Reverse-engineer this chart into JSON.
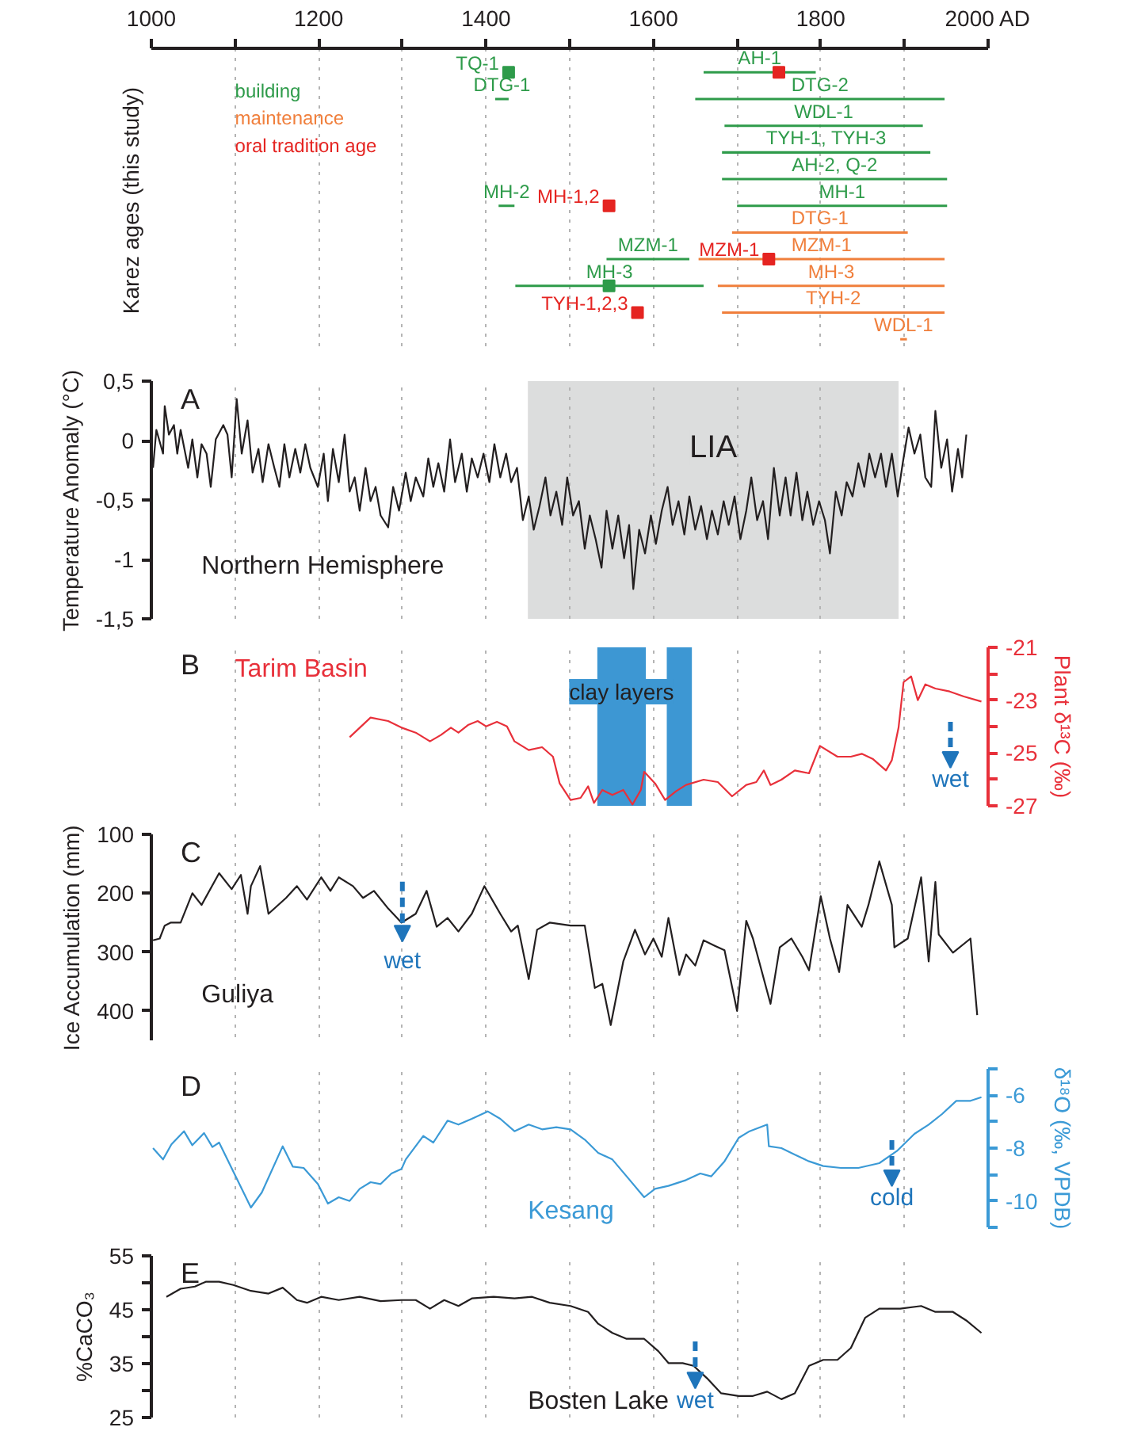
{
  "chart_data": [
    {
      "type": "bar",
      "orientation": "horizontal",
      "ylabel": "Karez ages (this study)",
      "categories": [
        null,
        null,
        null,
        null,
        null,
        null,
        null,
        null,
        null,
        null,
        null
      ],
      "xlim": [
        1000,
        2000
      ],
      "xticks": [
        1000,
        {
          "value": 1100,
          "label": null
        },
        1200,
        {
          "value": 1300,
          "label": null
        },
        1400,
        {
          "value": 1500,
          "label": null
        },
        1600,
        {
          "value": 1700,
          "label": null
        },
        1800,
        {
          "value": 1900,
          "label": null
        },
        {
          "value": 2000,
          "label": "2000 AD"
        }
      ],
      "grid": "x",
      "tick_labels": "x",
      "marker": "square",
      "series": [
        {
          "name": "building",
          "color": "#2e9b4a",
          "base": [
            null,
            1411,
            null,
            null,
            null,
            1415,
            null,
            1544,
            1435,
            null,
            null
          ],
          "values": [
            null,
            16,
            null,
            null,
            null,
            19,
            null,
            99,
            225,
            null,
            null
          ],
          "value_labels": [
            null,
            "DTG-1",
            null,
            null,
            null,
            "MH-2",
            null,
            "MZM-1",
            "MH-3",
            null,
            null
          ]
        },
        {
          "color": "#2e9b4a",
          "base": [
            1660,
            1650,
            1685,
            1682,
            1682,
            1700,
            null,
            null,
            null,
            null,
            null
          ],
          "values": [
            134,
            298,
            237,
            249,
            269,
            251,
            null,
            null,
            null,
            null,
            null
          ],
          "value_labels": [
            "AH-1",
            "DTG-2",
            "WDL-1",
            "TYH-1, TYH-3",
            "AH-2, Q-2",
            "MH-1",
            null,
            null,
            null,
            null,
            null
          ]
        },
        {
          "name": "maintenance",
          "color": "#f07f3c",
          "base": [
            null,
            null,
            null,
            null,
            null,
            null,
            1694,
            1654,
            1677,
            1682,
            1895
          ],
          "values": [
            null,
            null,
            null,
            null,
            null,
            null,
            210,
            294,
            271,
            266,
            8
          ],
          "value_labels": [
            null,
            null,
            null,
            null,
            null,
            null,
            "DTG-1",
            "MZM-1",
            "MH-3",
            "TYH-2",
            "WDL-1"
          ]
        },
        {
          "type": "scatter",
          "color": "#2e9b4a",
          "values": [
            1427,
            null,
            null,
            null,
            null,
            null,
            null,
            null,
            1547,
            null,
            null
          ],
          "value_labels": [
            "TQ-1",
            null,
            null,
            null,
            null,
            null,
            null,
            null,
            null,
            null,
            null
          ]
        },
        {
          "type": "scatter",
          "name": "oral tradition age",
          "color": "#e52421",
          "values": [
            1750,
            null,
            null,
            null,
            null,
            1547,
            null,
            1738,
            null,
            1581,
            null
          ],
          "value_labels": [
            null,
            null,
            null,
            null,
            null,
            "MH-1,2",
            null,
            "MZM-1",
            null,
            "TYH-1,2,3",
            null
          ]
        }
      ]
    },
    {
      "type": "line",
      "ylabel": "Temperature Anomaly (°C)",
      "xlim": [
        1000,
        2000
      ],
      "xticks": [
        {
          "value": 1100,
          "label": null
        },
        {
          "value": 1200,
          "label": null
        },
        {
          "value": 1300,
          "label": null
        },
        {
          "value": 1400,
          "label": null
        },
        {
          "value": 1500,
          "label": null
        },
        {
          "value": 1600,
          "label": null
        },
        {
          "value": 1700,
          "label": null
        },
        {
          "value": 1800,
          "label": null
        },
        {
          "value": 1900,
          "label": null
        }
      ],
      "ylim": [
        -1.5,
        0.5
      ],
      "yticks": [
        {
          "value": 0.5,
          "label": "0,5"
        },
        0,
        {
          "value": -0.5,
          "label": "-0,5"
        },
        -1,
        {
          "value": -1.5,
          "label": "-1,5"
        }
      ],
      "grid": "x",
      "tick_labels": "y",
      "legend": "bottom left",
      "annotations": [
        "A"
      ],
      "bands": [
        {
          "axis": "x",
          "from": 1450,
          "to": 1893,
          "label": "LIA",
          "color": "#dcdddd"
        }
      ],
      "series": [
        {
          "name": "Northern Hemisphere",
          "color": "#231f20",
          "x": [
            1002,
            1006,
            1014,
            1016,
            1021,
            1027,
            1031,
            1035,
            1044,
            1049,
            1055,
            1060,
            1066,
            1071,
            1077,
            1086,
            1091,
            1096,
            1102,
            1108,
            1115,
            1121,
            1128,
            1133,
            1140,
            1147,
            1153,
            1159,
            1165,
            1172,
            1178,
            1184,
            1190,
            1199,
            1206,
            1211,
            1217,
            1224,
            1231,
            1237,
            1243,
            1249,
            1256,
            1262,
            1268,
            1274,
            1283,
            1289,
            1296,
            1304,
            1310,
            1316,
            1325,
            1331,
            1337,
            1343,
            1350,
            1357,
            1363,
            1371,
            1377,
            1383,
            1390,
            1397,
            1404,
            1410,
            1417,
            1424,
            1430,
            1437,
            1444,
            1451,
            1457,
            1464,
            1471,
            1477,
            1484,
            1491,
            1497,
            1504,
            1511,
            1518,
            1524,
            1531,
            1538,
            1544,
            1551,
            1558,
            1565,
            1571,
            1576,
            1583,
            1590,
            1597,
            1603,
            1610,
            1617,
            1623,
            1630,
            1637,
            1643,
            1650,
            1657,
            1664,
            1670,
            1677,
            1684,
            1690,
            1697,
            1704,
            1711,
            1717,
            1724,
            1731,
            1737,
            1744,
            1751,
            1758,
            1764,
            1771,
            1778,
            1784,
            1791,
            1798,
            1805,
            1811,
            1818,
            1825,
            1831,
            1838,
            1845,
            1852,
            1858,
            1865,
            1872,
            1878,
            1885,
            1892,
            1898,
            1905,
            1912,
            1919,
            1925,
            1932,
            1937,
            1944,
            1951,
            1957,
            1964,
            1969,
            1974
          ],
          "values": [
            -0.23,
            0.09,
            -0.11,
            0.29,
            0.05,
            0.13,
            -0.11,
            0.09,
            -0.23,
            0.01,
            -0.31,
            -0.03,
            -0.11,
            -0.39,
            0.01,
            0.13,
            0.05,
            -0.31,
            0.35,
            -0.11,
            0.17,
            -0.27,
            -0.07,
            -0.35,
            -0.03,
            -0.23,
            -0.39,
            -0.03,
            -0.31,
            -0.07,
            -0.27,
            -0.03,
            -0.23,
            -0.39,
            -0.11,
            -0.51,
            -0.07,
            -0.35,
            0.05,
            -0.43,
            -0.31,
            -0.59,
            -0.23,
            -0.51,
            -0.39,
            -0.63,
            -0.73,
            -0.39,
            -0.59,
            -0.27,
            -0.51,
            -0.31,
            -0.47,
            -0.15,
            -0.39,
            -0.19,
            -0.43,
            0.01,
            -0.35,
            -0.11,
            -0.43,
            -0.15,
            -0.31,
            -0.11,
            -0.35,
            -0.03,
            -0.31,
            -0.11,
            -0.35,
            -0.23,
            -0.67,
            -0.47,
            -0.75,
            -0.55,
            -0.31,
            -0.63,
            -0.43,
            -0.71,
            -0.31,
            -0.63,
            -0.51,
            -0.91,
            -0.63,
            -0.83,
            -1.07,
            -0.59,
            -0.91,
            -0.63,
            -0.99,
            -0.71,
            -1.25,
            -0.75,
            -0.95,
            -0.63,
            -0.87,
            -0.59,
            -0.39,
            -0.71,
            -0.51,
            -0.79,
            -0.47,
            -0.75,
            -0.55,
            -0.83,
            -0.59,
            -0.79,
            -0.51,
            -0.71,
            -0.47,
            -0.83,
            -0.59,
            -0.31,
            -0.67,
            -0.51,
            -0.83,
            -0.23,
            -0.63,
            -0.31,
            -0.63,
            -0.27,
            -0.67,
            -0.43,
            -0.71,
            -0.51,
            -0.67,
            -0.95,
            -0.43,
            -0.63,
            -0.35,
            -0.47,
            -0.19,
            -0.39,
            -0.11,
            -0.31,
            -0.11,
            -0.39,
            -0.11,
            -0.47,
            -0.19,
            0.11,
            -0.11,
            0.05,
            -0.31,
            -0.39,
            0.25,
            -0.23,
            0.01,
            -0.43,
            -0.07,
            -0.31,
            0.05
          ]
        }
      ]
    },
    {
      "type": "line",
      "y2label": "Plant δ¹³C (‰)",
      "xlim": [
        1000,
        2000
      ],
      "xticks": [
        {
          "value": 1100,
          "label": null
        },
        {
          "value": 1200,
          "label": null
        },
        {
          "value": 1300,
          "label": null
        },
        {
          "value": 1400,
          "label": null
        },
        {
          "value": 1500,
          "label": null
        },
        {
          "value": 1600,
          "label": null
        },
        {
          "value": 1700,
          "label": null
        },
        {
          "value": 1800,
          "label": null
        },
        {
          "value": 1900,
          "label": null
        }
      ],
      "y2lim": [
        -27,
        -21
      ],
      "y2ticks": [
        -21,
        {
          "value": -22,
          "label": null
        },
        -23,
        {
          "value": -24,
          "label": null
        },
        -25,
        {
          "value": -26,
          "label": null
        },
        -27
      ],
      "grid": "x",
      "tick_labels": "y",
      "legend": "top left",
      "annotations": [
        "B",
        "wet"
      ],
      "bands": [
        {
          "axis": "x",
          "from": 1533,
          "to": 1591,
          "label": "clay layers",
          "color": "#3d97d3"
        },
        {
          "axis": "x",
          "from": 1616,
          "to": 1646,
          "color": "#3d97d3"
        }
      ],
      "series": [
        {
          "name": "Tarim Basin",
          "color": "#e8303a",
          "axis": "y2",
          "x": [
            1237,
            1262,
            1283,
            1299,
            1316,
            1333,
            1346,
            1358,
            1367,
            1379,
            1390,
            1400,
            1413,
            1425,
            1434,
            1451,
            1467,
            1480,
            1488,
            1501,
            1513,
            1522,
            1529,
            1539,
            1551,
            1564,
            1575,
            1585,
            1589,
            1602,
            1614,
            1627,
            1639,
            1660,
            1677,
            1694,
            1711,
            1723,
            1732,
            1740,
            1753,
            1769,
            1786,
            1799,
            1820,
            1836,
            1849,
            1862,
            1878,
            1885,
            1893,
            1899,
            1908,
            1916,
            1925,
            1937,
            1954,
            1971,
            1992
          ],
          "values": [
            -24.4,
            -23.66,
            -23.79,
            -24.04,
            -24.23,
            -24.56,
            -24.32,
            -24.04,
            -24.23,
            -23.93,
            -23.79,
            -23.99,
            -23.82,
            -23.99,
            -24.56,
            -24.89,
            -24.78,
            -25.14,
            -26.15,
            -26.78,
            -26.7,
            -26.26,
            -26.89,
            -26.4,
            -26.59,
            -26.4,
            -26.95,
            -26.4,
            -25.71,
            -26.15,
            -26.78,
            -26.45,
            -26.21,
            -26.01,
            -26.1,
            -26.64,
            -26.21,
            -26.1,
            -25.66,
            -26.21,
            -26.01,
            -25.66,
            -25.77,
            -24.73,
            -25.14,
            -25.14,
            -25.03,
            -25.22,
            -25.66,
            -25.27,
            -24.04,
            -22.32,
            -22.1,
            -23.0,
            -22.4,
            -22.56,
            -22.67,
            -22.86,
            -23.05
          ]
        }
      ]
    },
    {
      "type": "line",
      "ylabel": "Ice Accumulation (mm)",
      "xlim": [
        1000,
        2000
      ],
      "xticks": [
        {
          "value": 1100,
          "label": null
        },
        {
          "value": 1200,
          "label": null
        },
        {
          "value": 1300,
          "label": null
        },
        {
          "value": 1400,
          "label": null
        },
        {
          "value": 1500,
          "label": null
        },
        {
          "value": 1600,
          "label": null
        },
        {
          "value": 1700,
          "label": null
        },
        {
          "value": 1800,
          "label": null
        },
        {
          "value": 1900,
          "label": null
        }
      ],
      "ylim": [
        450,
        100
      ],
      "yticks": [
        100,
        200,
        300,
        400
      ],
      "grid": "x",
      "tick_labels": "y",
      "legend": "bottom left",
      "annotations": [
        "C",
        "wet"
      ],
      "series": [
        {
          "name": "Guliya",
          "color": "#231f20",
          "x": [
            1002,
            1010,
            1016,
            1023,
            1035,
            1049,
            1060,
            1081,
            1096,
            1107,
            1115,
            1119,
            1130,
            1140,
            1161,
            1174,
            1186,
            1203,
            1214,
            1224,
            1241,
            1253,
            1266,
            1283,
            1299,
            1316,
            1329,
            1341,
            1354,
            1367,
            1383,
            1398,
            1417,
            1430,
            1438,
            1451,
            1461,
            1476,
            1501,
            1518,
            1530,
            1539,
            1549,
            1564,
            1578,
            1590,
            1600,
            1610,
            1618,
            1631,
            1639,
            1650,
            1660,
            1673,
            1685,
            1700,
            1711,
            1719,
            1740,
            1751,
            1765,
            1778,
            1786,
            1800,
            1811,
            1822,
            1832,
            1849,
            1857,
            1870,
            1885,
            1888,
            1904,
            1920,
            1929,
            1937,
            1941,
            1958,
            1979,
            1987
          ],
          "values": [
            280,
            277,
            255,
            250,
            250,
            200,
            220,
            166,
            193,
            169,
            235,
            188,
            154,
            235,
            208,
            188,
            211,
            173,
            196,
            173,
            188,
            208,
            196,
            226,
            250,
            235,
            196,
            257,
            242,
            265,
            235,
            188,
            235,
            265,
            255,
            346,
            262,
            250,
            255,
            255,
            361,
            354,
            424,
            316,
            262,
            304,
            277,
            308,
            242,
            339,
            304,
            323,
            280,
            289,
            297,
            400,
            247,
            277,
            388,
            292,
            277,
            308,
            331,
            205,
            277,
            334,
            220,
            257,
            220,
            146,
            220,
            292,
            277,
            173,
            316,
            181,
            270,
            301,
            277,
            407
          ]
        }
      ]
    },
    {
      "type": "line",
      "y2label": "δ¹⁸O (‰, VPDB)",
      "xlim": [
        1000,
        2000
      ],
      "xticks": [
        {
          "value": 1100,
          "label": null
        },
        {
          "value": 1200,
          "label": null
        },
        {
          "value": 1300,
          "label": null
        },
        {
          "value": 1400,
          "label": null
        },
        {
          "value": 1500,
          "label": null
        },
        {
          "value": 1600,
          "label": null
        },
        {
          "value": 1700,
          "label": null
        },
        {
          "value": 1800,
          "label": null
        },
        {
          "value": 1900,
          "label": null
        }
      ],
      "y2lim": [
        -11,
        -5
      ],
      "y2ticks": [
        {
          "value": -5,
          "label": null
        },
        -6,
        {
          "value": -7,
          "label": null
        },
        -8,
        {
          "value": -9,
          "label": null
        },
        -10,
        {
          "value": -11,
          "label": null
        }
      ],
      "grid": "x",
      "tick_labels": "y",
      "legend": "bottom",
      "annotations": [
        "D",
        "cold"
      ],
      "series": [
        {
          "name": "Kesang",
          "color": "#3b9ad6",
          "axis": "y2",
          "x": [
            1002,
            1014,
            1024,
            1039,
            1049,
            1063,
            1073,
            1081,
            1119,
            1132,
            1157,
            1169,
            1182,
            1199,
            1211,
            1224,
            1237,
            1249,
            1262,
            1274,
            1287,
            1299,
            1304,
            1325,
            1337,
            1354,
            1367,
            1383,
            1402,
            1417,
            1434,
            1451,
            1467,
            1484,
            1501,
            1518,
            1534,
            1551,
            1568,
            1589,
            1602,
            1618,
            1639,
            1656,
            1669,
            1685,
            1702,
            1715,
            1736,
            1738,
            1753,
            1769,
            1786,
            1803,
            1824,
            1845,
            1870,
            1891,
            1912,
            1929,
            1945,
            1962,
            1979,
            1992
          ],
          "values": [
            -8.0,
            -8.43,
            -7.86,
            -7.36,
            -7.89,
            -7.43,
            -7.96,
            -7.79,
            -10.25,
            -9.68,
            -7.93,
            -8.7,
            -8.75,
            -9.36,
            -10.1,
            -9.86,
            -10.0,
            -9.54,
            -9.29,
            -9.36,
            -8.96,
            -8.79,
            -8.43,
            -7.54,
            -7.79,
            -6.96,
            -7.11,
            -6.89,
            -6.61,
            -6.89,
            -7.36,
            -7.11,
            -7.29,
            -7.21,
            -7.29,
            -7.68,
            -8.18,
            -8.43,
            -9.07,
            -9.86,
            -9.54,
            -9.43,
            -9.21,
            -8.96,
            -9.07,
            -8.5,
            -7.61,
            -7.36,
            -7.11,
            -7.93,
            -8.0,
            -8.25,
            -8.5,
            -8.68,
            -8.75,
            -8.75,
            -8.57,
            -8.11,
            -7.46,
            -7.11,
            -6.71,
            -6.21,
            -6.21,
            -6.07
          ]
        }
      ]
    },
    {
      "type": "line",
      "ylabel": "%CaCO₃",
      "xlim": [
        1000,
        2000
      ],
      "xticks": [
        {
          "value": 1100,
          "label": null
        },
        {
          "value": 1200,
          "label": null
        },
        {
          "value": 1300,
          "label": null
        },
        {
          "value": 1400,
          "label": null
        },
        {
          "value": 1500,
          "label": null
        },
        {
          "value": 1600,
          "label": null
        },
        {
          "value": 1700,
          "label": null
        },
        {
          "value": 1800,
          "label": null
        },
        {
          "value": 1900,
          "label": null
        }
      ],
      "ylim": [
        25,
        55
      ],
      "yticks": [
        25,
        {
          "value": 30,
          "label": null
        },
        35,
        {
          "value": 40,
          "label": null
        },
        45,
        {
          "value": 50,
          "label": null
        },
        55
      ],
      "grid": "x",
      "tick_labels": "y",
      "legend": "bottom",
      "annotations": [
        "E",
        "wet"
      ],
      "series": [
        {
          "name": "Bosten Lake",
          "color": "#231f20",
          "x": [
            1018,
            1035,
            1052,
            1065,
            1081,
            1098,
            1119,
            1140,
            1157,
            1174,
            1186,
            1203,
            1224,
            1249,
            1274,
            1299,
            1316,
            1333,
            1350,
            1367,
            1383,
            1409,
            1434,
            1455,
            1476,
            1501,
            1522,
            1534,
            1551,
            1568,
            1589,
            1606,
            1618,
            1635,
            1648,
            1664,
            1681,
            1702,
            1719,
            1736,
            1753,
            1769,
            1786,
            1803,
            1820,
            1836,
            1853,
            1870,
            1895,
            1920,
            1937,
            1958,
            1975,
            1992
          ],
          "values": [
            47.4,
            48.9,
            49.3,
            50.2,
            50.2,
            49.6,
            48.5,
            48.0,
            49.1,
            46.8,
            46.3,
            47.4,
            46.8,
            47.4,
            46.6,
            46.8,
            46.8,
            45.2,
            46.8,
            45.7,
            47.1,
            47.4,
            47.1,
            47.4,
            46.3,
            45.7,
            44.6,
            42.4,
            40.7,
            39.6,
            39.6,
            37.3,
            35.1,
            35.1,
            34.6,
            32.3,
            29.5,
            29.0,
            29.0,
            29.8,
            28.4,
            29.5,
            34.6,
            35.7,
            35.7,
            37.9,
            43.5,
            45.2,
            45.2,
            45.7,
            44.6,
            44.6,
            42.9,
            40.7
          ]
        }
      ]
    }
  ]
}
